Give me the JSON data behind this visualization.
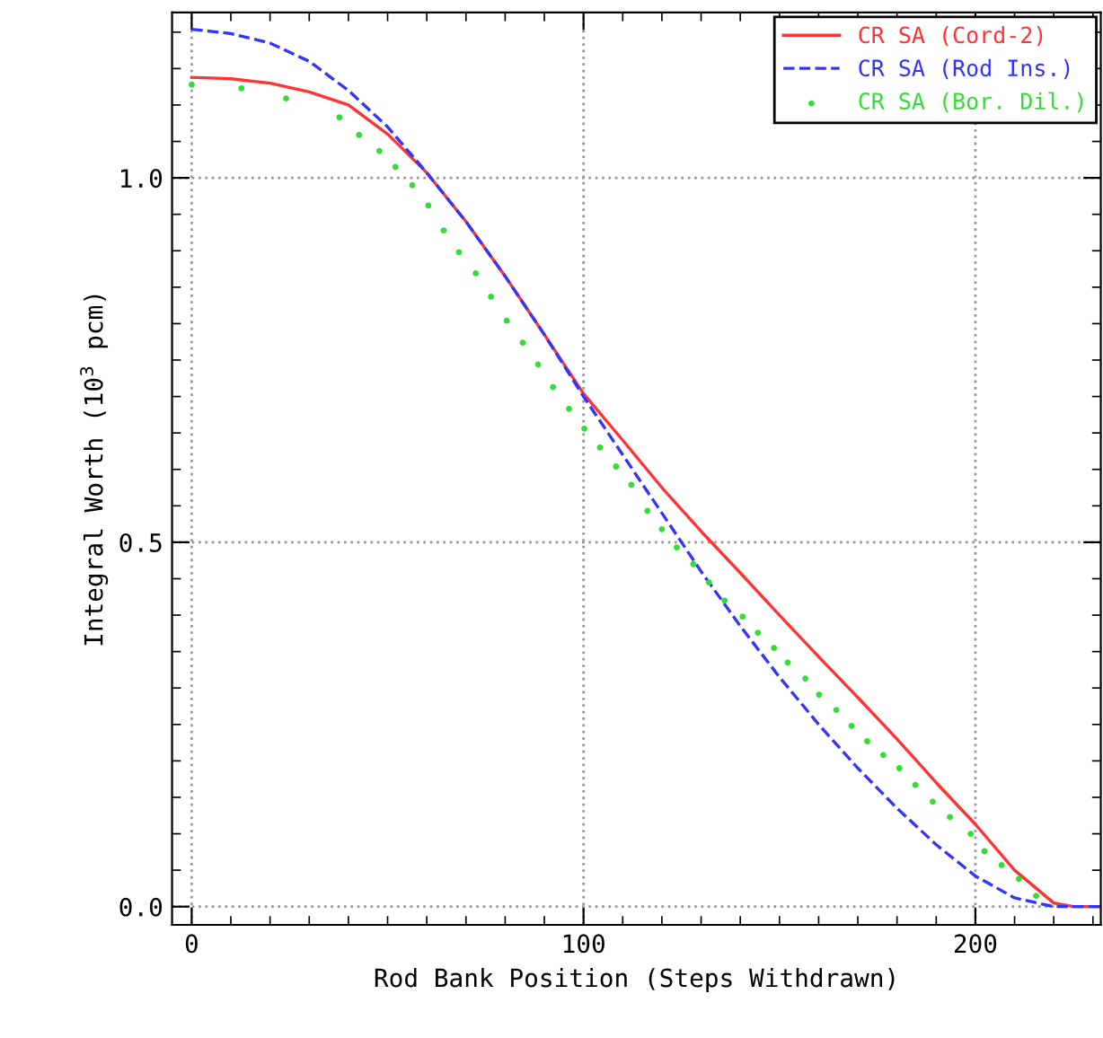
{
  "chart_data": {
    "type": "line",
    "xlabel": "Rod Bank Position (Steps Withdrawn)",
    "ylabel": "Integral Worth (10$^{3}$ pcm)",
    "xlim": [
      -5,
      232
    ],
    "ylim": [
      -0.025,
      1.227
    ],
    "xticks": [
      0,
      100,
      200
    ],
    "yticks": [
      {
        "value": 0,
        "label": "0.0"
      },
      {
        "value": 0.5,
        "label": "0.5"
      },
      {
        "value": 1.0,
        "label": "1.0"
      }
    ],
    "grid": true,
    "legend": "top right",
    "series": [
      {
        "name": "CR SA (Cord-2)",
        "color": "#ff3333",
        "line_style": "solid",
        "x": [
          0,
          10,
          20,
          30,
          40,
          50,
          60,
          70,
          80,
          90,
          100,
          110,
          120,
          130,
          140,
          150,
          160,
          170,
          180,
          190,
          200,
          210,
          220,
          225,
          232
        ],
        "values": [
          1.138,
          1.136,
          1.13,
          1.118,
          1.1,
          1.06,
          1.007,
          0.94,
          0.865,
          0.785,
          0.704,
          0.64,
          0.575,
          0.515,
          0.458,
          0.4,
          0.343,
          0.287,
          0.23,
          0.17,
          0.113,
          0.05,
          0.005,
          0,
          0
        ]
      },
      {
        "name": "CR SA (Rod Ins.)",
        "color": "#3333ff",
        "line_style": "dashed",
        "x": [
          0,
          10,
          20,
          30,
          40,
          50,
          60,
          70,
          80,
          90,
          100,
          110,
          120,
          130,
          140,
          150,
          160,
          170,
          180,
          190,
          200,
          210,
          220,
          232
        ],
        "values": [
          1.204,
          1.198,
          1.185,
          1.16,
          1.12,
          1.07,
          1.007,
          0.94,
          0.865,
          0.785,
          0.7,
          0.62,
          0.54,
          0.46,
          0.385,
          0.315,
          0.25,
          0.19,
          0.135,
          0.085,
          0.042,
          0.012,
          0.0,
          0
        ]
      },
      {
        "name": "CR SA (Bor. Dil.)",
        "color": "#33dd33",
        "type": "scatter",
        "marker": "circle",
        "x": [
          0,
          12.7,
          24.1,
          37.7,
          42.7,
          47.9,
          52.0,
          56.3,
          60.4,
          64.3,
          68.2,
          72.5,
          76.4,
          80.4,
          84.5,
          88.4,
          92.2,
          96.3,
          100.2,
          104.2,
          108.3,
          112.2,
          116.3,
          120,
          123.8,
          128,
          132,
          136,
          140.6,
          144.5,
          148.6,
          152.1,
          156.6,
          160.1,
          164.5,
          168.4,
          172.4,
          176.5,
          180.6,
          184.7,
          189.1,
          193.5,
          198.8,
          202.3,
          206.7,
          211.1,
          215.5
        ],
        "values": [
          1.128,
          1.123,
          1.109,
          1.083,
          1.059,
          1.037,
          1.015,
          0.99,
          0.962,
          0.928,
          0.898,
          0.869,
          0.837,
          0.804,
          0.774,
          0.744,
          0.713,
          0.683,
          0.656,
          0.63,
          0.604,
          0.579,
          0.543,
          0.518,
          0.493,
          0.47,
          0.445,
          0.42,
          0.398,
          0.376,
          0.355,
          0.335,
          0.313,
          0.291,
          0.27,
          0.248,
          0.227,
          0.208,
          0.19,
          0.167,
          0.144,
          0.123,
          0.1,
          0.076,
          0.057,
          0.038,
          0.015
        ]
      }
    ]
  }
}
